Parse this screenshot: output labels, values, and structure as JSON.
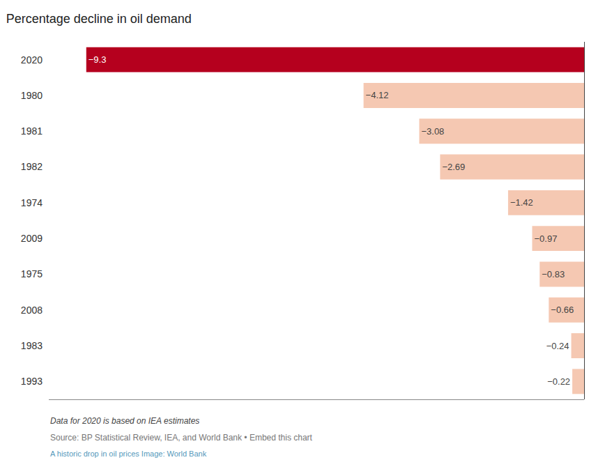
{
  "chart_data": {
    "type": "bar",
    "orientation": "horizontal",
    "title": "Percentage decline in oil demand",
    "categories": [
      "2020",
      "1980",
      "1981",
      "1982",
      "1974",
      "2009",
      "1975",
      "2008",
      "1983",
      "1993"
    ],
    "values": [
      -9.3,
      -4.12,
      -3.08,
      -2.69,
      -1.42,
      -0.97,
      -0.83,
      -0.66,
      -0.24,
      -0.22
    ],
    "value_labels": [
      "−9.3",
      "−4.12",
      "−3.08",
      "−2.69",
      "−1.42",
      "−0.97",
      "−0.83",
      "−0.66",
      "−0.24",
      "−0.22"
    ],
    "colors": [
      "#b5001e",
      "#f5c8b2",
      "#f5c8b2",
      "#f5c8b2",
      "#f5c8b2",
      "#f5c8b2",
      "#f5c8b2",
      "#f5c8b2",
      "#f5c8b2",
      "#f5c8b2"
    ],
    "data_labels": true,
    "xlim": [
      -10,
      0
    ],
    "tick_labels": "y",
    "grid": false,
    "annotations": [
      "Data for 2020 is based on IEA estimates",
      "Source: BP Statistical Review, IEA, and World Bank • Embed this chart",
      "A historic drop in oil prices Image: World Bank"
    ]
  }
}
